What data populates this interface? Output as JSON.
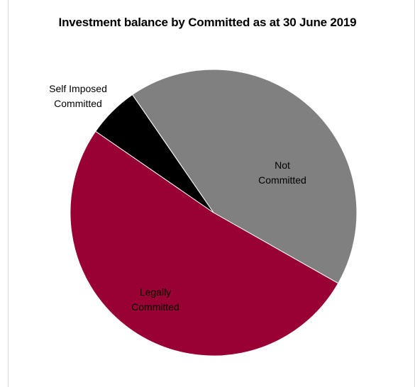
{
  "chart_data": {
    "type": "pie",
    "title": "Investment balance by Committed as at 30 June 2019",
    "slices": [
      {
        "label_lines": [
          "Not",
          "Committed"
        ],
        "value": 42.8,
        "color": "#808080"
      },
      {
        "label_lines": [
          "Legally",
          "Committed"
        ],
        "value": 51.4,
        "color": "#990033"
      },
      {
        "label_lines": [
          "Self Imposed",
          "Committed"
        ],
        "value": 5.8,
        "color": "#000000"
      }
    ],
    "legend": "none"
  }
}
